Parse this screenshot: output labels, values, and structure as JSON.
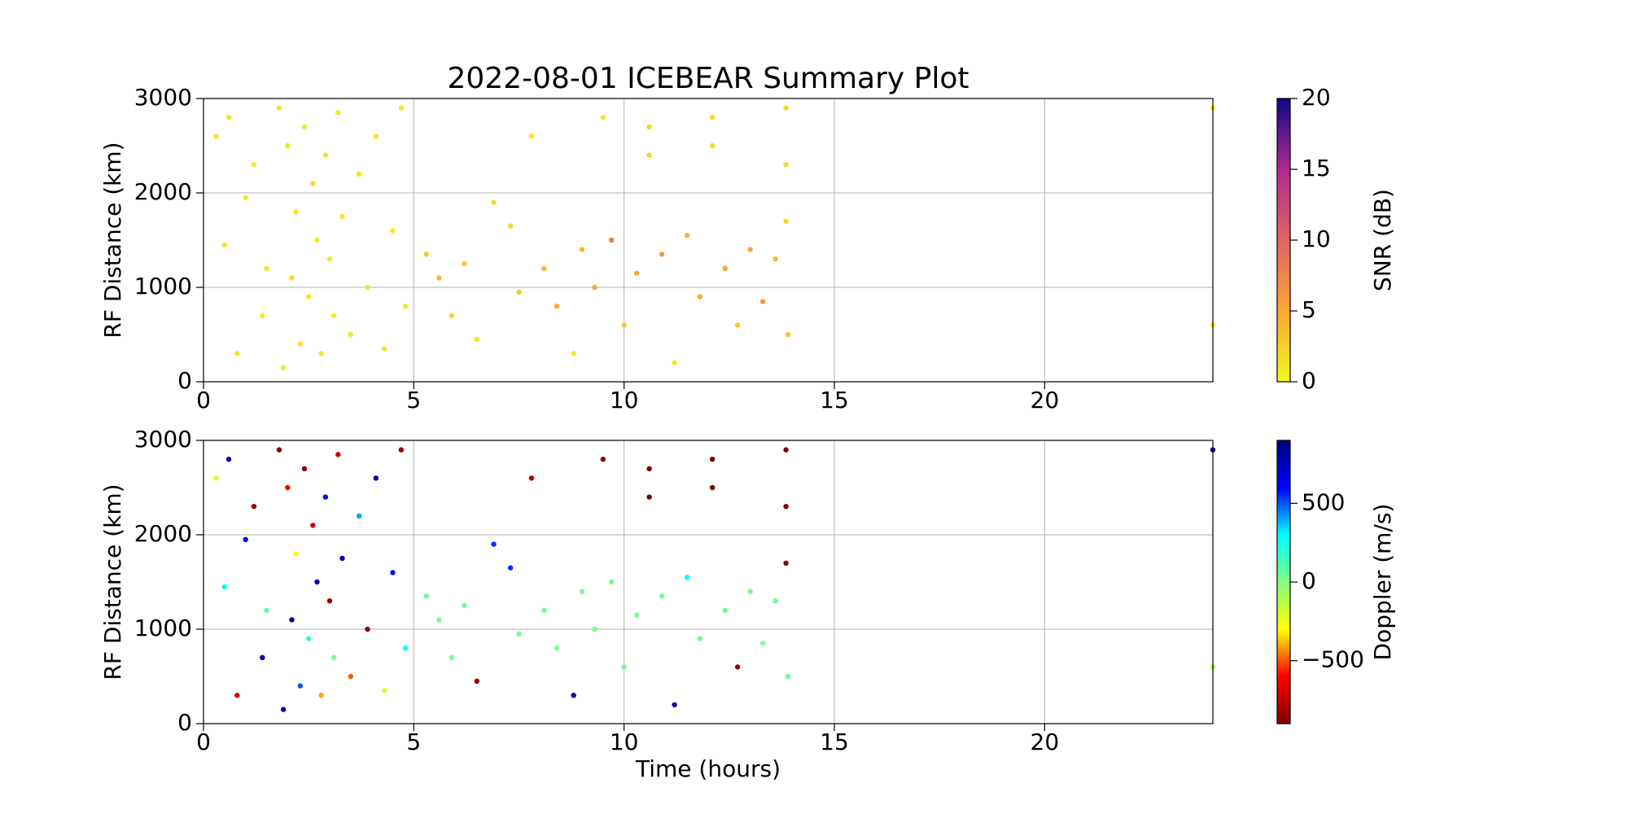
{
  "chart_data": [
    {
      "type": "scatter",
      "title": "2022-08-01 ICEBEAR Summary Plot",
      "ylabel": "RF Distance (km)",
      "xlim": [
        0,
        24
      ],
      "xticks": [
        0,
        5,
        10,
        15,
        20
      ],
      "ylim": [
        0,
        3000
      ],
      "yticks": [
        0,
        1000,
        2000,
        3000
      ],
      "grid": true,
      "x": [
        0.3,
        0.5,
        0.6,
        0.8,
        1.0,
        1.2,
        1.4,
        1.5,
        1.8,
        1.9,
        2.0,
        2.1,
        2.2,
        2.3,
        2.4,
        2.5,
        2.6,
        2.7,
        2.8,
        2.9,
        3.0,
        3.1,
        3.2,
        3.3,
        3.5,
        3.7,
        3.9,
        4.1,
        4.3,
        4.5,
        4.7,
        4.8,
        5.3,
        5.6,
        5.9,
        6.2,
        6.5,
        6.9,
        7.3,
        7.5,
        7.8,
        8.1,
        8.4,
        8.8,
        9.0,
        9.3,
        9.5,
        9.7,
        10.0,
        10.3,
        10.6,
        10.6,
        10.9,
        11.2,
        11.5,
        11.8,
        12.1,
        12.1,
        12.4,
        12.7,
        13.0,
        13.3,
        13.6,
        13.85,
        13.85,
        13.85,
        13.9,
        24.0,
        24.0
      ],
      "values": [
        2600,
        1450,
        2800,
        300,
        1950,
        2300,
        700,
        1200,
        2900,
        150,
        2500,
        1100,
        1800,
        400,
        2700,
        900,
        2100,
        1500,
        300,
        2400,
        1300,
        700,
        2850,
        1750,
        500,
        2200,
        1000,
        2600,
        350,
        1600,
        2900,
        800,
        1350,
        1100,
        700,
        1250,
        450,
        1900,
        1650,
        950,
        2600,
        1200,
        800,
        300,
        1400,
        1000,
        2800,
        1500,
        600,
        1150,
        2700,
        2400,
        1350,
        200,
        1550,
        900,
        2800,
        2500,
        1200,
        600,
        1400,
        850,
        1300,
        2900,
        2300,
        1700,
        500,
        2900,
        600
      ],
      "color_values": [
        1,
        1,
        1,
        1,
        1,
        1,
        1,
        1,
        1,
        1,
        1,
        2,
        1,
        1,
        1,
        1,
        2,
        1,
        1,
        1,
        1,
        1,
        1,
        1,
        1,
        1,
        1,
        1,
        1,
        1,
        1,
        1,
        3,
        4,
        2,
        3,
        1,
        2,
        2,
        3,
        1,
        4,
        5,
        1,
        4,
        5,
        1,
        8,
        3,
        5,
        2,
        2,
        6,
        1,
        4,
        5,
        2,
        2,
        5,
        3,
        5,
        6,
        4,
        2,
        2,
        2,
        3,
        1,
        1
      ],
      "colorbar": {
        "label": "SNR (dB)",
        "lim": [
          0,
          20
        ],
        "ticks": [
          0,
          5,
          10,
          15,
          20
        ],
        "colors": [
          "#f0f921",
          "#fca636",
          "#e16462",
          "#b12a90",
          "#0d0887"
        ]
      }
    },
    {
      "type": "scatter",
      "ylabel": "RF Distance (km)",
      "xlabel": "Time (hours)",
      "xlim": [
        0,
        24
      ],
      "xticks": [
        0,
        5,
        10,
        15,
        20
      ],
      "ylim": [
        0,
        3000
      ],
      "yticks": [
        0,
        1000,
        2000,
        3000
      ],
      "grid": true,
      "x": [
        0.3,
        0.5,
        0.6,
        0.8,
        1.0,
        1.2,
        1.4,
        1.5,
        1.8,
        1.9,
        2.0,
        2.1,
        2.2,
        2.3,
        2.4,
        2.5,
        2.6,
        2.7,
        2.8,
        2.9,
        3.0,
        3.1,
        3.2,
        3.3,
        3.5,
        3.7,
        3.9,
        4.1,
        4.3,
        4.5,
        4.7,
        4.8,
        5.3,
        5.6,
        5.9,
        6.2,
        6.5,
        6.9,
        7.3,
        7.5,
        7.8,
        8.1,
        8.4,
        8.8,
        9.0,
        9.3,
        9.5,
        9.7,
        10.0,
        10.3,
        10.6,
        10.6,
        10.9,
        11.2,
        11.5,
        11.8,
        12.1,
        12.1,
        12.4,
        12.7,
        13.0,
        13.3,
        13.6,
        13.85,
        13.85,
        13.85,
        13.9,
        24.0,
        24.0
      ],
      "values": [
        2600,
        1450,
        2800,
        300,
        1950,
        2300,
        700,
        1200,
        2900,
        150,
        2500,
        1100,
        1800,
        400,
        2700,
        900,
        2100,
        1500,
        300,
        2400,
        1300,
        700,
        2850,
        1750,
        500,
        2200,
        1000,
        2600,
        350,
        1600,
        2900,
        800,
        1350,
        1100,
        700,
        1250,
        450,
        1900,
        1650,
        950,
        2600,
        1200,
        800,
        300,
        1400,
        1000,
        2800,
        1500,
        600,
        1150,
        2700,
        2400,
        1350,
        200,
        1550,
        900,
        2800,
        2500,
        1200,
        600,
        1400,
        850,
        1300,
        2900,
        2300,
        1700,
        500,
        2900,
        600
      ],
      "color_values": [
        -200,
        300,
        800,
        -700,
        600,
        -850,
        850,
        100,
        -900,
        700,
        -600,
        850,
        -300,
        500,
        -850,
        200,
        -700,
        850,
        -400,
        650,
        -850,
        0,
        -750,
        800,
        -500,
        400,
        -850,
        850,
        -200,
        600,
        -850,
        300,
        50,
        30,
        20,
        40,
        -850,
        550,
        550,
        60,
        -800,
        30,
        20,
        850,
        40,
        10,
        -850,
        30,
        50,
        20,
        -900,
        -900,
        40,
        850,
        300,
        30,
        -900,
        -900,
        40,
        -850,
        30,
        20,
        50,
        -900,
        -900,
        -900,
        40,
        850,
        -100
      ],
      "colorbar": {
        "label": "Doppler (m/s)",
        "lim": [
          -900,
          900
        ],
        "ticks": [
          {
            "value": -500,
            "label": "−500"
          },
          0,
          500
        ],
        "colors": [
          "#800000",
          "#ff0000",
          "#ffff00",
          "#80ff80",
          "#00ffff",
          "#0000ff",
          "#000080"
        ]
      }
    }
  ]
}
